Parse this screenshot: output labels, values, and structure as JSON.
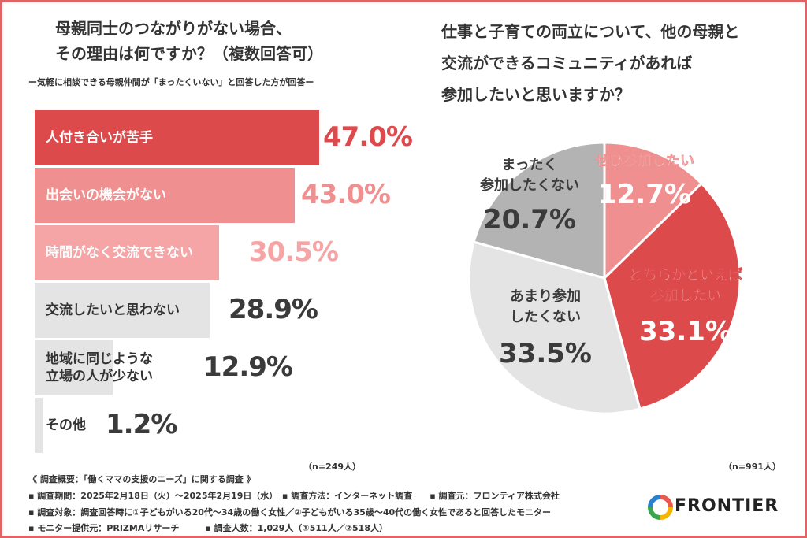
{
  "left_chart": {
    "title": "母親同士のつながりがない場合、\nその理由は何ですか？（複数回答可）",
    "subtitle": "ー気軽に相談できる母親仲間が「まったくいない」と回答した方が回答ー",
    "n": "（n=249人）"
  },
  "right_chart": {
    "title": "仕事と子育ての両立について、他の母親と\n交流ができるコミュニティがあれば\n参加したいと思いますか？",
    "n": "（n=991人）"
  },
  "chart_data": [
    {
      "type": "bar",
      "orientation": "horizontal",
      "categories": [
        "人付き合いが苦手",
        "出会いの機会がない",
        "時間がなく交流できない",
        "交流したいと思わない",
        "地域に同じような\n立場の人が少ない",
        "その他"
      ],
      "values": [
        47.0,
        43.0,
        30.5,
        28.9,
        12.9,
        1.2
      ],
      "value_labels": [
        "47.0%",
        "43.0%",
        "30.5%",
        "28.9%",
        "12.9%",
        "1.2%"
      ],
      "colors": [
        "#dd4a4c",
        "#f08f8f",
        "#f5a5a5",
        "#e4e4e4",
        "#e4e4e4",
        "#e4e4e4"
      ],
      "value_colors": [
        "#dd4a4c",
        "#f08f8f",
        "#f5a5a5",
        "#3b3b3b",
        "#3b3b3b",
        "#3b3b3b"
      ],
      "xlim": [
        0,
        50
      ]
    },
    {
      "type": "pie",
      "categories": [
        "ぜひ参加したい",
        "どちらかといえば\n参加したい",
        "あまり参加\nしたくない",
        "まったく\n参加したくない"
      ],
      "values": [
        12.7,
        33.1,
        33.5,
        20.7
      ],
      "value_labels": [
        "12.7%",
        "33.1%",
        "33.5%",
        "20.7%"
      ],
      "colors": [
        "#f08f8f",
        "#dd4a4c",
        "#e4e4e4",
        "#b3b3b3"
      ],
      "label_colors": [
        "#ffffff",
        "#ffffff",
        "#3b3b3b",
        "#3b3b3b"
      ],
      "start_angle": "12 o'clock",
      "direction": "clockwise"
    }
  ],
  "footer": {
    "line1": "《 調査概要：「働くママの支援のニーズ」に関する調査 》",
    "line2": "▪ 調査期間：2025年2月18日（火）〜2025年2月19日（水）　▪ 調査方法：インターネット調査　　▪ 調査元：フロンティア株式会社",
    "line3": "▪ 調査対象：調査回答時に①子どもがいる20代〜34歳の働く女性／②子どもがいる35歳〜40代の働く女性であると回答したモニター",
    "line4": "▪ モニター提供元：PRIZMAリサーチ　　　▪ 調査人数：1,029人（①511人／②518人）"
  },
  "logo": {
    "text": "FRONTIER",
    "colors": [
      "#e85a4f",
      "#f5b400",
      "#39a64b",
      "#2b7fd1"
    ]
  }
}
